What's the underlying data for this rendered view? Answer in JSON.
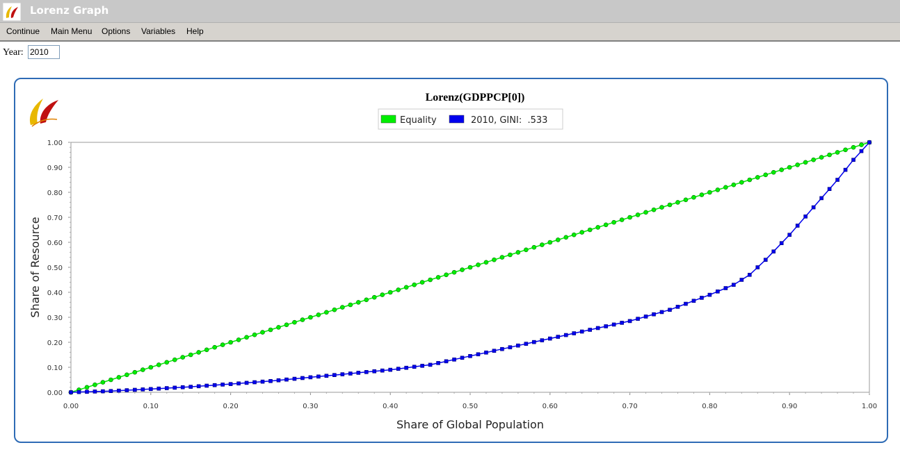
{
  "window": {
    "title": "Lorenz Graph"
  },
  "menu": {
    "items": [
      "Continue",
      "Main Menu",
      "Options",
      "Variables",
      "Help"
    ]
  },
  "year_field": {
    "label": "Year:",
    "value": "2010"
  },
  "colors": {
    "equality": "#00ee00",
    "lorenz": "#0000ee",
    "panel_border": "#2e6bb5"
  },
  "icons": [
    "app-logo-icon",
    "chart-logo-icon"
  ],
  "chart_data": {
    "type": "line",
    "title": "Lorenz(GDPPCP[0])",
    "xlabel": "Share of Global Population",
    "ylabel": "Share of Resource",
    "xlim": [
      0,
      1
    ],
    "ylim": [
      0,
      1
    ],
    "x_ticks": [
      "0.00",
      "0.10",
      "0.20",
      "0.30",
      "0.40",
      "0.50",
      "0.60",
      "0.70",
      "0.80",
      "0.90",
      "1.00"
    ],
    "y_ticks": [
      "0.00",
      "0.10",
      "0.20",
      "0.30",
      "0.40",
      "0.50",
      "0.60",
      "0.70",
      "0.80",
      "0.90",
      "1.00"
    ],
    "legend_position": "top-center",
    "grid": false,
    "series": [
      {
        "name": "Equality",
        "color": "#00ee00",
        "marker": "circle",
        "x": [
          0,
          1
        ],
        "y": [
          0,
          1
        ],
        "points": 101
      },
      {
        "name": "2010, GINI:  .533",
        "color": "#0000ee",
        "marker": "square",
        "x": [
          0,
          0.05,
          0.1,
          0.15,
          0.2,
          0.25,
          0.3,
          0.35,
          0.4,
          0.45,
          0.5,
          0.55,
          0.6,
          0.65,
          0.7,
          0.75,
          0.8,
          0.83,
          0.85,
          0.87,
          0.9,
          0.93,
          0.96,
          0.98,
          1.0
        ],
        "y": [
          0,
          0.005,
          0.013,
          0.022,
          0.033,
          0.045,
          0.06,
          0.075,
          0.09,
          0.11,
          0.145,
          0.18,
          0.215,
          0.25,
          0.285,
          0.33,
          0.39,
          0.43,
          0.47,
          0.53,
          0.63,
          0.74,
          0.85,
          0.93,
          1.0
        ],
        "points": 101
      }
    ]
  }
}
